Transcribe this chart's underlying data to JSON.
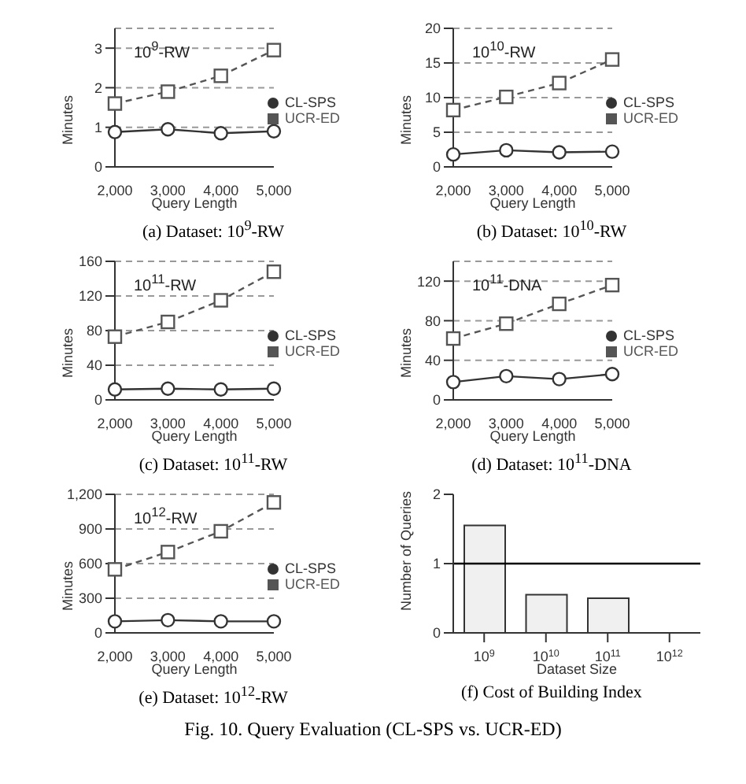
{
  "chart_data": [
    {
      "type": "line",
      "subtitle": "(a)  Dataset: 10$^{9}$-RW",
      "annotations": [
        "10$^{9}$-RW"
      ],
      "xlabel": "Query Length",
      "ylabel": "Minutes",
      "categories": [
        "2,000",
        "3,000",
        "4,000",
        "5,000"
      ],
      "ylim": [
        0,
        3.5
      ],
      "yticks": [
        0,
        1,
        2,
        3
      ],
      "grid": "y",
      "legend": "right",
      "series": [
        {
          "name": "CL-SPS",
          "color": "#333333",
          "marker": "circle",
          "line_style": "solid",
          "values": [
            0.88,
            0.95,
            0.85,
            0.9
          ]
        },
        {
          "name": "UCR-ED",
          "color": "#555555",
          "marker": "square",
          "line_style": "dashed",
          "values": [
            1.6,
            1.9,
            2.3,
            2.95
          ]
        }
      ]
    },
    {
      "type": "line",
      "subtitle": "(b)  Dataset: 10$^{10}$-RW",
      "annotations": [
        "10$^{10}$-RW"
      ],
      "xlabel": "Query Length",
      "ylabel": "Minutes",
      "categories": [
        "2,000",
        "3,000",
        "4,000",
        "5,000"
      ],
      "ylim": [
        0,
        20
      ],
      "yticks": [
        0,
        5,
        10,
        15,
        20
      ],
      "grid": "y",
      "legend": "right",
      "series": [
        {
          "name": "CL-SPS",
          "color": "#333333",
          "marker": "circle",
          "line_style": "solid",
          "values": [
            1.8,
            2.4,
            2.1,
            2.2
          ]
        },
        {
          "name": "UCR-ED",
          "color": "#555555",
          "marker": "square",
          "line_style": "dashed",
          "values": [
            8.2,
            10.1,
            12.1,
            15.5
          ]
        }
      ]
    },
    {
      "type": "line",
      "subtitle": "(c)  Dataset: 10$^{11}$-RW",
      "annotations": [
        "10$^{11}$-RW"
      ],
      "xlabel": "Query Length",
      "ylabel": "Minutes",
      "categories": [
        "2,000",
        "3,000",
        "4,000",
        "5,000"
      ],
      "ylim": [
        0,
        160
      ],
      "yticks": [
        0,
        40,
        80,
        120,
        160
      ],
      "grid": "y",
      "legend": "right",
      "series": [
        {
          "name": "CL-SPS",
          "color": "#333333",
          "marker": "circle",
          "line_style": "solid",
          "values": [
            12,
            13,
            12,
            13
          ]
        },
        {
          "name": "UCR-ED",
          "color": "#555555",
          "marker": "square",
          "line_style": "dashed",
          "values": [
            73,
            90,
            115,
            148
          ]
        }
      ]
    },
    {
      "type": "line",
      "subtitle": "(d)  Dataset: 10$^{11}$-DNA",
      "annotations": [
        "10$^{11}$-DNA"
      ],
      "xlabel": "Query Length",
      "ylabel": "Minutes",
      "categories": [
        "2,000",
        "3,000",
        "4,000",
        "5,000"
      ],
      "ylim": [
        0,
        140
      ],
      "yticks": [
        0,
        40,
        80,
        120
      ],
      "grid": "y",
      "legend": "right",
      "series": [
        {
          "name": "CL-SPS",
          "color": "#333333",
          "marker": "circle",
          "line_style": "solid",
          "values": [
            18,
            24,
            21,
            26
          ]
        },
        {
          "name": "UCR-ED",
          "color": "#555555",
          "marker": "square",
          "line_style": "dashed",
          "values": [
            62,
            77,
            97,
            116
          ]
        }
      ]
    },
    {
      "type": "line",
      "subtitle": "(e)  Dataset: 10$^{12}$-RW",
      "annotations": [
        "10$^{12}$-RW"
      ],
      "xlabel": "Query Length",
      "ylabel": "Minutes",
      "categories": [
        "2,000",
        "3,000",
        "4,000",
        "5,000"
      ],
      "ylim": [
        0,
        1200
      ],
      "yticks": [
        0,
        {
          "value": 300,
          "label": "300"
        },
        600,
        900,
        {
          "value": 1200,
          "label": "1,200"
        }
      ],
      "grid": "y",
      "legend": "right",
      "series": [
        {
          "name": "CL-SPS",
          "color": "#333333",
          "marker": "circle",
          "line_style": "solid",
          "values": [
            100,
            110,
            100,
            100
          ]
        },
        {
          "name": "UCR-ED",
          "color": "#555555",
          "marker": "square",
          "line_style": "dashed",
          "values": [
            550,
            700,
            880,
            1130
          ]
        }
      ]
    },
    {
      "type": "bar",
      "subtitle": "(f)  Cost of Building Index",
      "annotations": [
        "Fig. 10.  Query Evaluation (CL-SPS vs. UCR-ED)"
      ],
      "xlabel": "Dataset Size",
      "ylabel": "Number of Queries",
      "categories": [
        "10$^{9}$",
        "10$^{10}$",
        "10$^{11}$",
        "10$^{12}$"
      ],
      "ylim": [
        0,
        2
      ],
      "yticks": [
        0,
        1,
        2
      ],
      "color": "#f0f0f0",
      "values": [
        1.55,
        0.55,
        0.5,
        null
      ],
      "ref_lines": [
        {
          "axis": "y",
          "value": 1,
          "color": "#000000"
        }
      ]
    }
  ]
}
